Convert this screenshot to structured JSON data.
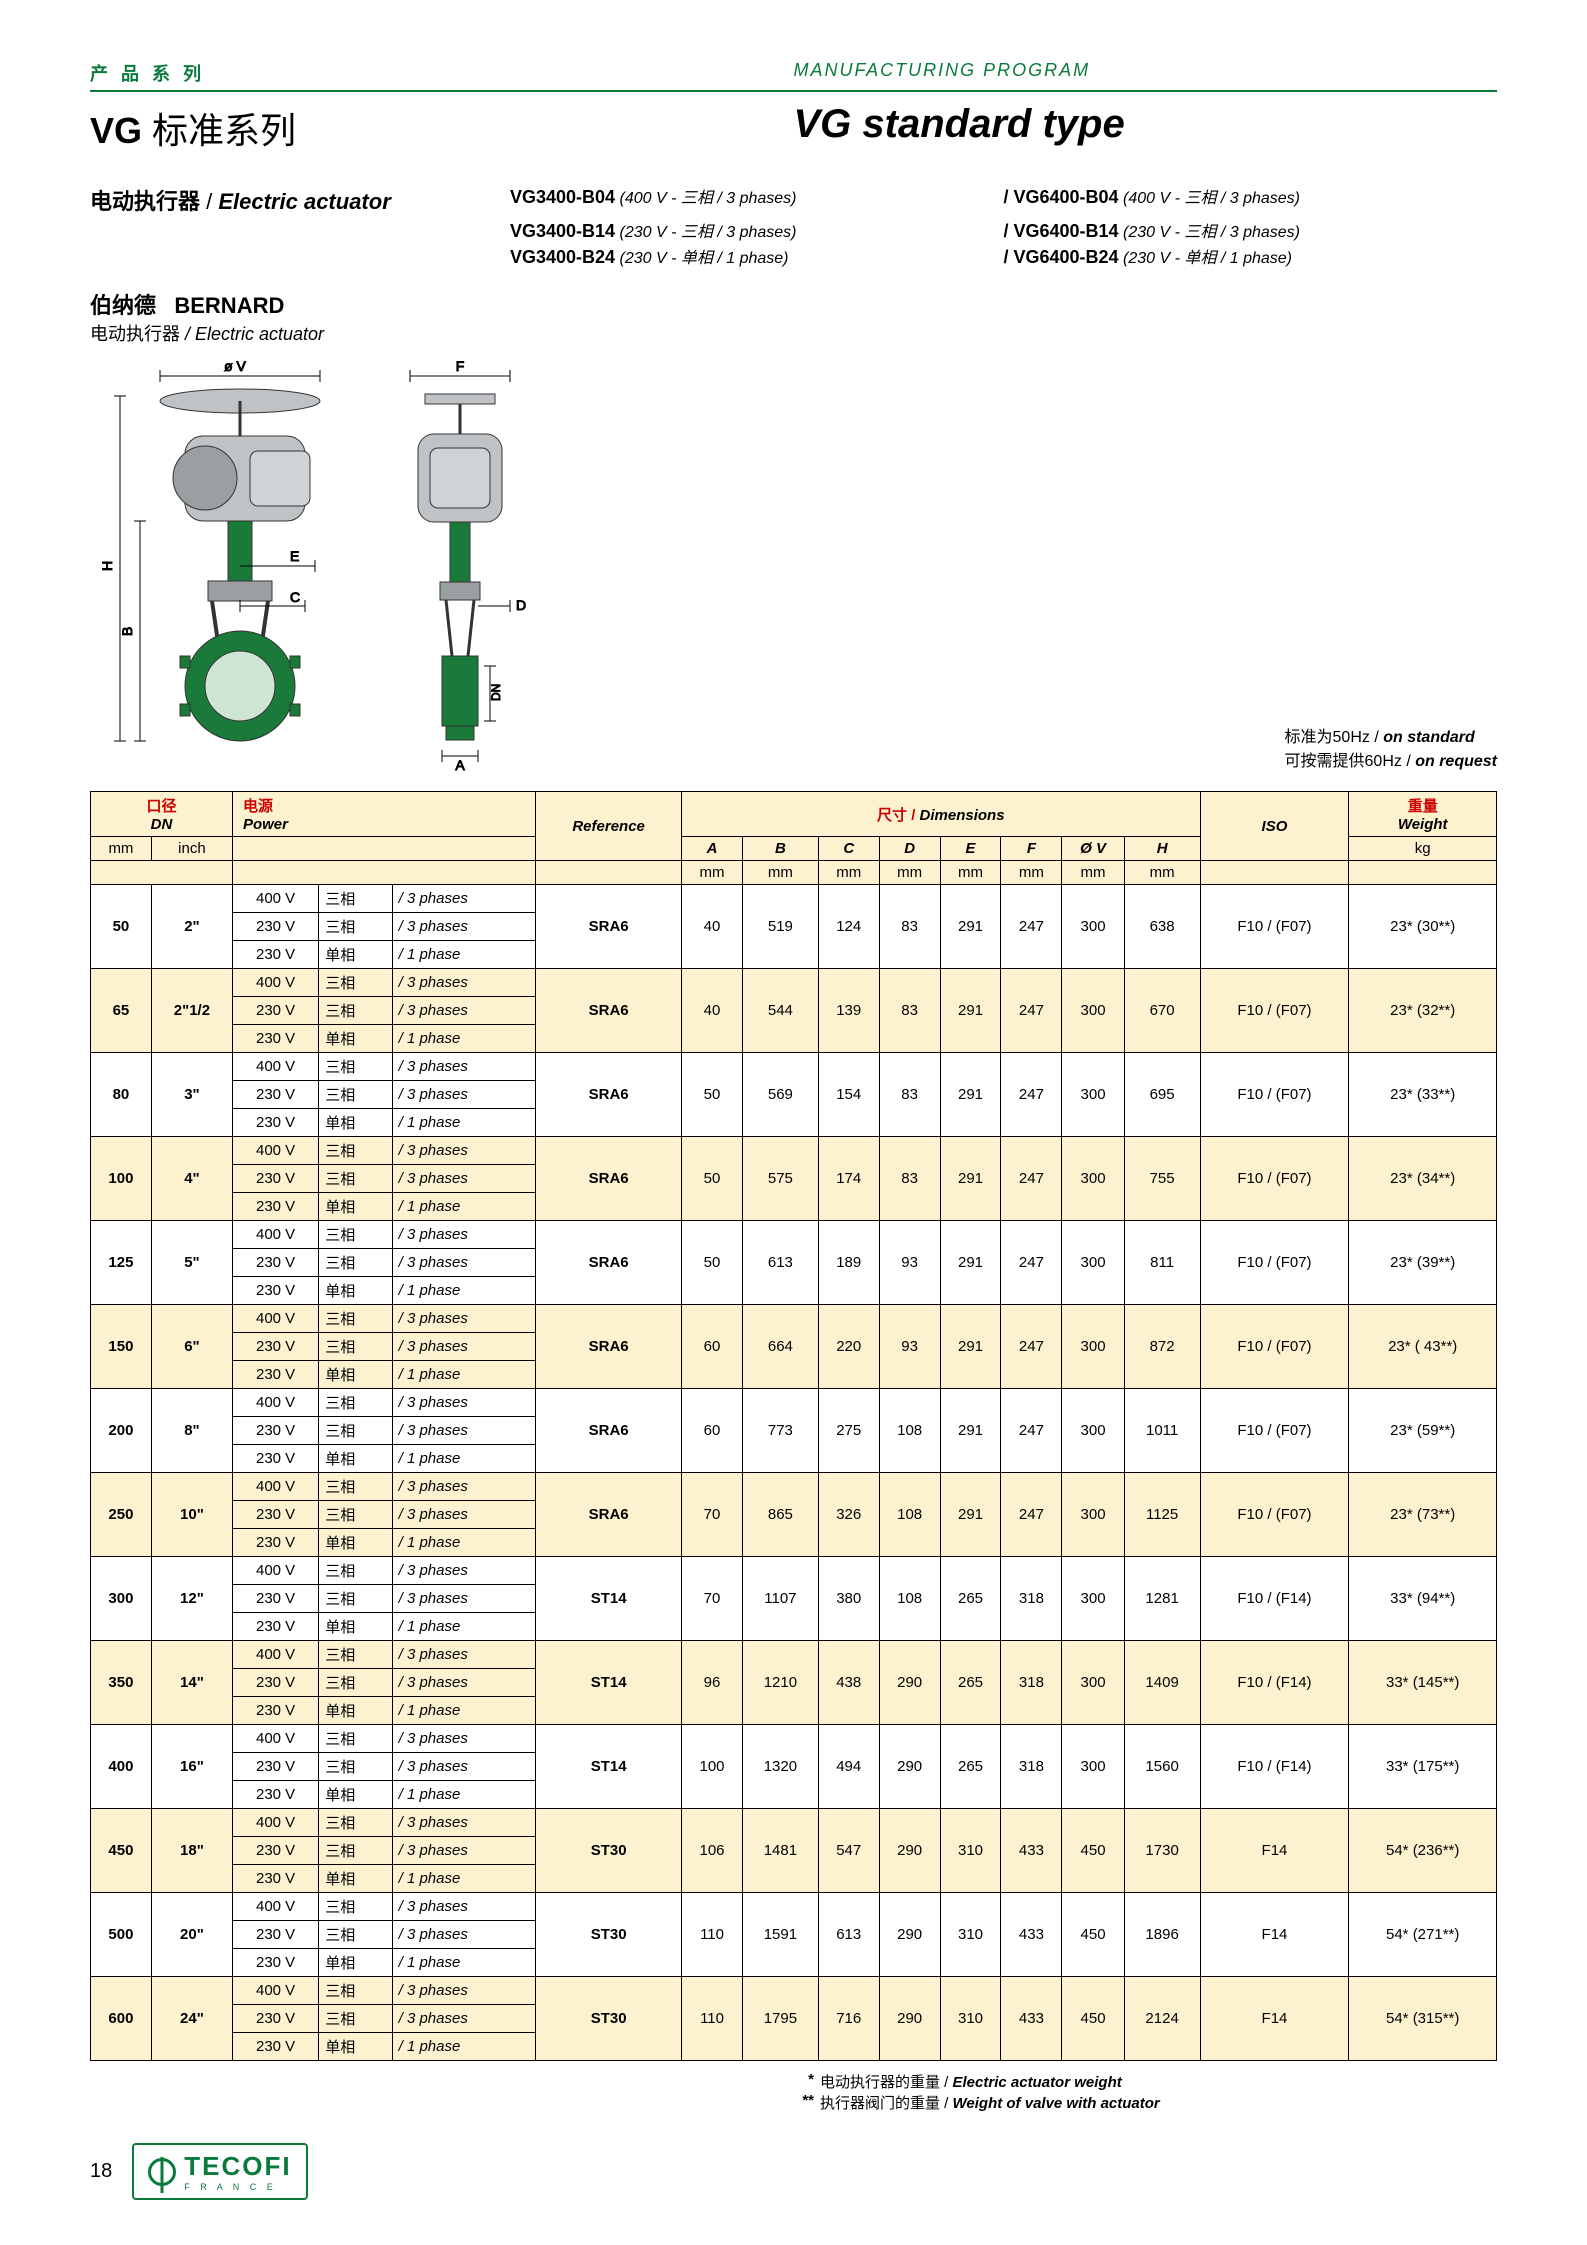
{
  "header": {
    "cn": "产 品 系 列",
    "en": "MANUFACTURING PROGRAM"
  },
  "titles": {
    "cn_bold": "VG",
    "cn_rest": " 标准系列",
    "en": "VG standard type"
  },
  "subheader": {
    "cn": "电动执行器",
    "slash": " / ",
    "en": "Electric actuator",
    "models": [
      {
        "l": "VG3400-B04",
        "ls": " (400 V - 三相 / 3 phases)",
        "r": "/ VG6400-B04",
        "rs": " (400 V - 三相 / 3 phases)"
      },
      {
        "l": "VG3400-B14",
        "ls": " (230 V - 三相 / 3 phases)",
        "r": "/ VG6400-B14",
        "rs": " (230 V - 三相 / 3 phases)"
      },
      {
        "l": "VG3400-B24",
        "ls": " (230 V - 单相 / 1 phase)",
        "r": "/ VG6400-B24",
        "rs": " (230 V - 单相 / 1 phase)"
      }
    ]
  },
  "bernard": {
    "cn": "伯纳德",
    "en": "BERNARD",
    "sub_cn": "电动执行器",
    "sub_en": " / Electric actuator"
  },
  "diagram_labels": {
    "ov": "ø V",
    "F": "F",
    "H": "H",
    "B": "B",
    "E": "E",
    "C": "C",
    "D": "D",
    "A": "A",
    "DN": "DN"
  },
  "diagram_style": {
    "body_color": "#9aa0a2",
    "valve_green": "#1a7a3a",
    "outline": "#333333",
    "dim_line": "#000000",
    "font_size": 14
  },
  "notes_right": {
    "l1_cn": "标准为50Hz /",
    "l1_en": " on standard",
    "l2_cn": "可按需提供60Hz /",
    "l2_en": " on request"
  },
  "table": {
    "head": {
      "dn_cn": "口径",
      "dn_en": "DN",
      "power_cn": "电源",
      "power_en": "Power",
      "ref": "Reference",
      "dim_cn": "尺寸 /",
      "dim_en": " Dimensions",
      "cols": [
        "A",
        "B",
        "C",
        "D",
        "E",
        "F",
        "Ø V",
        "H"
      ],
      "iso": "ISO",
      "weight_cn": "重量",
      "weight_en": "Weight",
      "mm": "mm",
      "inch": "inch",
      "kg": "kg"
    },
    "power_lines": [
      {
        "v": "400 V",
        "cn": "三相",
        "en": "/ 3 phases"
      },
      {
        "v": "230 V",
        "cn": "三相",
        "en": "/ 3 phases"
      },
      {
        "v": "230 V",
        "cn": "单相",
        "en": "/ 1 phase"
      }
    ],
    "rows": [
      {
        "mm": "50",
        "inch": "2\"",
        "ref": "SRA6",
        "A": "40",
        "B": "519",
        "C": "124",
        "D": "83",
        "E": "291",
        "F": "247",
        "OV": "300",
        "H": "638",
        "ISO": "F10 / (F07)",
        "W": "23* (30**)"
      },
      {
        "mm": "65",
        "inch": "2\"1/2",
        "ref": "SRA6",
        "A": "40",
        "B": "544",
        "C": "139",
        "D": "83",
        "E": "291",
        "F": "247",
        "OV": "300",
        "H": "670",
        "ISO": "F10 / (F07)",
        "W": "23* (32**)"
      },
      {
        "mm": "80",
        "inch": "3\"",
        "ref": "SRA6",
        "A": "50",
        "B": "569",
        "C": "154",
        "D": "83",
        "E": "291",
        "F": "247",
        "OV": "300",
        "H": "695",
        "ISO": "F10 / (F07)",
        "W": "23* (33**)"
      },
      {
        "mm": "100",
        "inch": "4\"",
        "ref": "SRA6",
        "A": "50",
        "B": "575",
        "C": "174",
        "D": "83",
        "E": "291",
        "F": "247",
        "OV": "300",
        "H": "755",
        "ISO": "F10 / (F07)",
        "W": "23* (34**)"
      },
      {
        "mm": "125",
        "inch": "5\"",
        "ref": "SRA6",
        "A": "50",
        "B": "613",
        "C": "189",
        "D": "93",
        "E": "291",
        "F": "247",
        "OV": "300",
        "H": "811",
        "ISO": "F10 / (F07)",
        "W": "23* (39**)"
      },
      {
        "mm": "150",
        "inch": "6\"",
        "ref": "SRA6",
        "A": "60",
        "B": "664",
        "C": "220",
        "D": "93",
        "E": "291",
        "F": "247",
        "OV": "300",
        "H": "872",
        "ISO": "F10 / (F07)",
        "W": "23* ( 43**)"
      },
      {
        "mm": "200",
        "inch": "8\"",
        "ref": "SRA6",
        "A": "60",
        "B": "773",
        "C": "275",
        "D": "108",
        "E": "291",
        "F": "247",
        "OV": "300",
        "H": "1011",
        "ISO": "F10 / (F07)",
        "W": "23* (59**)"
      },
      {
        "mm": "250",
        "inch": "10\"",
        "ref": "SRA6",
        "A": "70",
        "B": "865",
        "C": "326",
        "D": "108",
        "E": "291",
        "F": "247",
        "OV": "300",
        "H": "1125",
        "ISO": "F10 / (F07)",
        "W": "23* (73**)"
      },
      {
        "mm": "300",
        "inch": "12\"",
        "ref": "ST14",
        "A": "70",
        "B": "1107",
        "C": "380",
        "D": "108",
        "E": "265",
        "F": "318",
        "OV": "300",
        "H": "1281",
        "ISO": "F10 / (F14)",
        "W": "33* (94**)"
      },
      {
        "mm": "350",
        "inch": "14\"",
        "ref": "ST14",
        "A": "96",
        "B": "1210",
        "C": "438",
        "D": "290",
        "E": "265",
        "F": "318",
        "OV": "300",
        "H": "1409",
        "ISO": "F10 / (F14)",
        "W": "33* (145**)"
      },
      {
        "mm": "400",
        "inch": "16\"",
        "ref": "ST14",
        "A": "100",
        "B": "1320",
        "C": "494",
        "D": "290",
        "E": "265",
        "F": "318",
        "OV": "300",
        "H": "1560",
        "ISO": "F10 / (F14)",
        "W": "33* (175**)"
      },
      {
        "mm": "450",
        "inch": "18\"",
        "ref": "ST30",
        "A": "106",
        "B": "1481",
        "C": "547",
        "D": "290",
        "E": "310",
        "F": "433",
        "OV": "450",
        "H": "1730",
        "ISO": "F14",
        "W": "54* (236**)"
      },
      {
        "mm": "500",
        "inch": "20\"",
        "ref": "ST30",
        "A": "110",
        "B": "1591",
        "C": "613",
        "D": "290",
        "E": "310",
        "F": "433",
        "OV": "450",
        "H": "1896",
        "ISO": "F14",
        "W": "54* (271**)"
      },
      {
        "mm": "600",
        "inch": "24\"",
        "ref": "ST30",
        "A": "110",
        "B": "1795",
        "C": "716",
        "D": "290",
        "E": "310",
        "F": "433",
        "OV": "450",
        "H": "2124",
        "ISO": "F14",
        "W": "54* (315**)"
      }
    ]
  },
  "footnotes": {
    "a_mark": "*",
    "a_cn": "电动执行器的重量 /",
    "a_en": " Electric actuator weight",
    "b_mark": "**",
    "b_cn": "执行器阀门的重量 /",
    "b_en": " Weight of valve with actuator"
  },
  "footer": {
    "page": "18",
    "logo": "TECOFI",
    "logo_sub": "F R A N C E"
  }
}
